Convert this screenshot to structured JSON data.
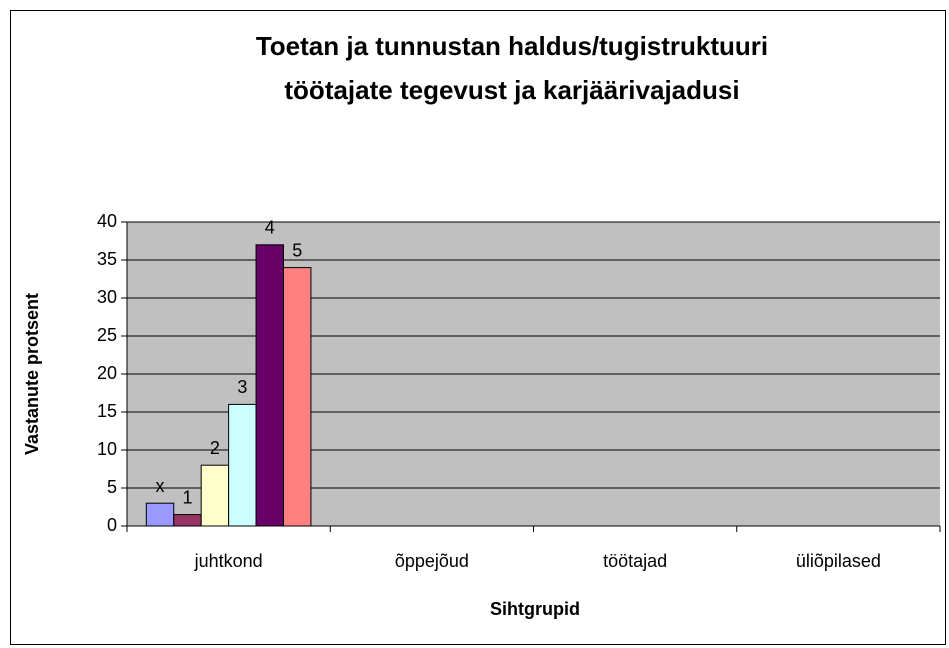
{
  "chart_data": {
    "type": "bar",
    "title": [
      "Toetan ja tunnustan haldus/tugistruktuuri",
      "töötajate tegevust ja karjäärivajadusi"
    ],
    "x_label": "Sihtgrupid",
    "y_label": "Vastanute protsent",
    "categories": [
      "juhtkond",
      "õppejõud",
      "töötajad",
      "üliõpilased"
    ],
    "series": [
      {
        "name": "x",
        "color": "#9999ff",
        "values": [
          3,
          null,
          null,
          null
        ]
      },
      {
        "name": "1",
        "color": "#993366",
        "values": [
          1.5,
          null,
          null,
          null
        ]
      },
      {
        "name": "2",
        "color": "#ffffcc",
        "values": [
          8,
          null,
          null,
          null
        ]
      },
      {
        "name": "3",
        "color": "#ccffff",
        "values": [
          16,
          null,
          null,
          null
        ]
      },
      {
        "name": "4",
        "color": "#660066",
        "values": [
          37,
          null,
          null,
          null
        ]
      },
      {
        "name": "5",
        "color": "#ff8080",
        "values": [
          34,
          null,
          null,
          null
        ]
      }
    ],
    "ylim": [
      0,
      40
    ],
    "yticks": [
      0,
      5,
      10,
      15,
      20,
      25,
      30,
      35,
      40
    ],
    "grid": true,
    "plot_background": "#c0c0c0"
  }
}
